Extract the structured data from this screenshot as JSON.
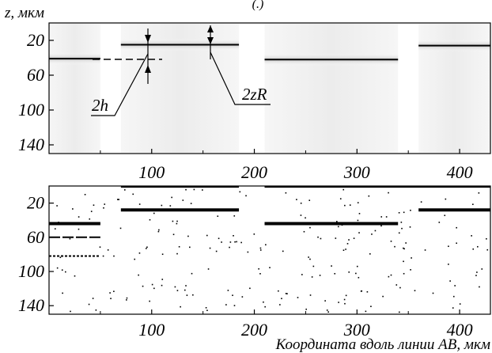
{
  "figure": {
    "panel_marker": "(.)",
    "y_axis_title": "z, мкм",
    "x_axis_title": "Координата вдоль линии AB,  мкм",
    "annotations": {
      "h": "2h",
      "zr": "2zR"
    }
  },
  "chart_data": [
    {
      "type": "heatmap",
      "title": "",
      "ylabel": "z, мкм",
      "xlabel": "",
      "x_ticks": [
        "100",
        "200",
        "300",
        "400"
      ],
      "y_ticks": [
        "20",
        "60",
        "100",
        "140"
      ],
      "ylim": [
        150,
        0
      ],
      "xlim": [
        0,
        430
      ],
      "layer_segments": [
        {
          "x_start": 0,
          "x_end": 50,
          "z": 41
        },
        {
          "x_start": 70,
          "x_end": 185,
          "z": 25
        },
        {
          "x_start": 210,
          "x_end": 340,
          "z": 42
        },
        {
          "x_start": 360,
          "x_end": 430,
          "z": 26
        }
      ],
      "annotations": [
        "2h",
        "2zR"
      ]
    },
    {
      "type": "scatter",
      "title": "",
      "xlabel": "Координата вдоль линии AB,  мкм",
      "ylabel": "",
      "x_ticks": [
        "100",
        "200",
        "300",
        "400"
      ],
      "y_ticks": [
        "20",
        "60",
        "100",
        "140"
      ],
      "ylim": [
        150,
        0
      ],
      "xlim": [
        0,
        430
      ],
      "detected_segments": [
        {
          "x_start": 0,
          "x_end": 50,
          "z": 44
        },
        {
          "x_start": 70,
          "x_end": 185,
          "z": 28
        },
        {
          "x_start": 210,
          "x_end": 340,
          "z": 44
        },
        {
          "x_start": 360,
          "x_end": 430,
          "z": 28
        },
        {
          "x_start": 0,
          "x_end": 50,
          "z": 60
        },
        {
          "x_start": 0,
          "x_end": 50,
          "z": 82
        },
        {
          "x_start": 70,
          "x_end": 185,
          "z": 1
        },
        {
          "x_start": 210,
          "x_end": 430,
          "z": 1
        }
      ]
    }
  ]
}
